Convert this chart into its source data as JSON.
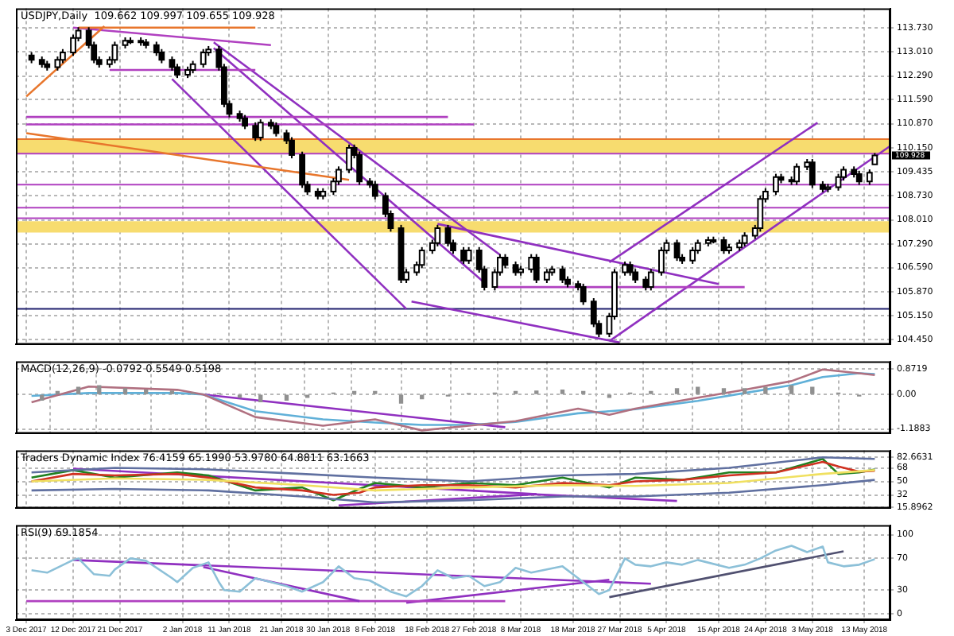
{
  "chart_data": [
    {
      "type": "candlestick",
      "title": "USDJPY,Daily  109.662 109.997 109.655 109.928",
      "x": [
        "2017-12-04",
        "2017-12-06",
        "2017-12-07",
        "2017-12-09",
        "2017-12-10",
        "2017-12-12",
        "2017-12-13",
        "2017-12-15",
        "2017-12-16",
        "2017-12-17",
        "2017-12-19",
        "2017-12-20",
        "2017-12-22",
        "2017-12-23",
        "2017-12-25",
        "2017-12-26",
        "2017-12-28",
        "2017-12-29",
        "2017-12-31",
        "2018-01-01",
        "2018-01-03",
        "2018-01-04",
        "2018-01-06",
        "2018-01-07",
        "2018-01-09",
        "2018-01-10",
        "2018-01-11",
        "2018-01-13",
        "2018-01-14",
        "2018-01-16",
        "2018-01-17",
        "2018-01-19",
        "2018-01-20",
        "2018-01-22",
        "2018-01-23",
        "2018-01-25",
        "2018-01-26",
        "2018-01-28",
        "2018-01-29",
        "2018-01-31",
        "2018-02-01",
        "2018-02-03",
        "2018-02-04",
        "2018-02-05",
        "2018-02-07",
        "2018-02-08",
        "2018-02-10",
        "2018-02-11",
        "2018-02-13",
        "2018-02-14",
        "2018-02-16",
        "2018-02-17",
        "2018-02-19",
        "2018-02-20",
        "2018-02-22",
        "2018-02-23",
        "2018-02-25",
        "2018-02-26",
        "2018-02-28",
        "2018-03-01",
        "2018-03-03",
        "2018-03-04",
        "2018-03-05",
        "2018-03-07",
        "2018-03-08",
        "2018-03-10",
        "2018-03-11",
        "2018-03-13",
        "2018-03-14",
        "2018-03-16",
        "2018-03-17",
        "2018-03-19",
        "2018-03-20",
        "2018-03-22",
        "2018-03-23",
        "2018-03-25",
        "2018-03-26",
        "2018-03-28",
        "2018-03-29",
        "2018-03-30",
        "2018-04-01",
        "2018-04-02",
        "2018-04-04",
        "2018-04-05",
        "2018-04-07",
        "2018-04-08",
        "2018-04-10",
        "2018-04-11",
        "2018-04-13",
        "2018-04-14",
        "2018-04-16",
        "2018-04-17",
        "2018-04-19",
        "2018-04-20",
        "2018-04-22",
        "2018-04-23",
        "2018-04-24",
        "2018-04-26",
        "2018-04-27",
        "2018-04-29",
        "2018-04-30",
        "2018-05-02",
        "2018-05-03",
        "2018-05-05",
        "2018-05-06",
        "2018-05-08",
        "2018-05-09",
        "2018-05-11",
        "2018-05-12",
        "2018-05-14",
        "2018-05-15"
      ],
      "ohlc": [
        [
          112.9,
          113.0,
          112.67,
          112.77
        ],
        [
          112.77,
          112.87,
          112.54,
          112.64
        ],
        [
          112.64,
          112.74,
          112.45,
          112.55
        ],
        [
          112.55,
          112.87,
          112.45,
          112.77
        ],
        [
          112.77,
          113.09,
          112.67,
          112.99
        ],
        [
          112.99,
          113.52,
          112.89,
          113.42
        ],
        [
          113.42,
          113.74,
          113.32,
          113.64
        ],
        [
          113.64,
          113.74,
          113.11,
          113.21
        ],
        [
          113.21,
          113.31,
          112.67,
          112.77
        ],
        [
          112.77,
          112.87,
          112.54,
          112.64
        ],
        [
          112.64,
          112.87,
          112.54,
          112.77
        ],
        [
          112.77,
          113.31,
          112.67,
          113.21
        ],
        [
          113.21,
          113.44,
          113.11,
          113.34
        ],
        [
          113.34,
          113.44,
          113.24,
          113.34
        ],
        [
          113.34,
          113.44,
          113.19,
          113.29
        ],
        [
          113.29,
          113.39,
          113.11,
          113.21
        ],
        [
          113.21,
          113.31,
          112.89,
          112.99
        ],
        [
          112.99,
          113.09,
          112.67,
          112.77
        ],
        [
          112.77,
          112.87,
          112.45,
          112.55
        ],
        [
          112.55,
          112.65,
          112.23,
          112.33
        ],
        [
          112.33,
          112.57,
          112.23,
          112.47
        ],
        [
          112.47,
          112.74,
          112.37,
          112.64
        ],
        [
          112.64,
          113.09,
          112.54,
          112.99
        ],
        [
          112.99,
          113.18,
          112.89,
          113.08
        ],
        [
          113.08,
          113.18,
          112.45,
          112.55
        ],
        [
          112.55,
          112.65,
          111.36,
          111.46
        ],
        [
          111.46,
          111.56,
          111.06,
          111.16
        ],
        [
          111.16,
          111.26,
          110.93,
          111.03
        ],
        [
          111.03,
          111.13,
          110.71,
          110.81
        ],
        [
          110.81,
          110.91,
          110.36,
          110.46
        ],
        [
          110.46,
          111.0,
          110.36,
          110.9
        ],
        [
          110.9,
          111.0,
          110.71,
          110.81
        ],
        [
          110.81,
          110.91,
          110.49,
          110.59
        ],
        [
          110.59,
          110.69,
          110.27,
          110.37
        ],
        [
          110.37,
          110.47,
          109.84,
          109.94
        ],
        [
          109.94,
          110.04,
          108.96,
          109.06
        ],
        [
          109.06,
          109.16,
          108.75,
          108.85
        ],
        [
          108.85,
          108.95,
          108.62,
          108.72
        ],
        [
          108.72,
          108.95,
          108.62,
          108.85
        ],
        [
          108.85,
          109.25,
          108.75,
          109.15
        ],
        [
          109.15,
          109.6,
          109.05,
          109.5
        ],
        [
          109.5,
          110.25,
          109.4,
          110.15
        ],
        [
          110.15,
          110.25,
          109.84,
          109.94
        ],
        [
          109.94,
          110.04,
          109.05,
          109.15
        ],
        [
          109.15,
          109.25,
          108.96,
          109.06
        ],
        [
          109.06,
          109.16,
          108.62,
          108.72
        ],
        [
          108.72,
          108.82,
          108.09,
          108.19
        ],
        [
          108.19,
          108.29,
          107.66,
          107.76
        ],
        [
          107.76,
          107.86,
          106.13,
          106.23
        ],
        [
          106.23,
          106.55,
          106.13,
          106.45
        ],
        [
          106.45,
          106.77,
          106.35,
          106.67
        ],
        [
          106.67,
          107.2,
          106.57,
          107.1
        ],
        [
          107.1,
          107.42,
          107.0,
          107.32
        ],
        [
          107.32,
          107.86,
          107.22,
          107.76
        ],
        [
          107.76,
          107.86,
          107.22,
          107.32
        ],
        [
          107.32,
          107.42,
          107.0,
          107.1
        ],
        [
          107.1,
          107.2,
          106.7,
          106.8
        ],
        [
          106.8,
          107.2,
          106.7,
          107.1
        ],
        [
          107.1,
          107.2,
          106.44,
          106.54
        ],
        [
          106.54,
          106.64,
          105.91,
          106.01
        ],
        [
          106.01,
          106.55,
          105.91,
          106.45
        ],
        [
          106.45,
          106.99,
          106.35,
          106.89
        ],
        [
          106.89,
          106.99,
          106.57,
          106.67
        ],
        [
          106.67,
          106.77,
          106.35,
          106.45
        ],
        [
          106.45,
          106.64,
          106.35,
          106.54
        ],
        [
          106.54,
          106.99,
          106.44,
          106.89
        ],
        [
          106.89,
          106.99,
          106.13,
          106.23
        ],
        [
          106.23,
          106.55,
          106.13,
          106.45
        ],
        [
          106.45,
          106.64,
          106.35,
          106.54
        ],
        [
          106.54,
          106.64,
          106.13,
          106.23
        ],
        [
          106.23,
          106.33,
          106.0,
          106.1
        ],
        [
          106.1,
          106.2,
          105.91,
          106.01
        ],
        [
          106.01,
          106.11,
          105.48,
          105.58
        ],
        [
          105.58,
          105.68,
          104.82,
          104.92
        ],
        [
          104.92,
          105.02,
          104.52,
          104.62
        ],
        [
          104.62,
          105.24,
          104.52,
          105.14
        ],
        [
          105.14,
          106.55,
          105.04,
          106.45
        ],
        [
          106.45,
          106.77,
          106.35,
          106.67
        ],
        [
          106.67,
          106.77,
          106.35,
          106.45
        ],
        [
          106.45,
          106.55,
          106.13,
          106.23
        ],
        [
          106.23,
          106.33,
          105.91,
          106.01
        ],
        [
          106.01,
          106.55,
          105.91,
          106.45
        ],
        [
          106.45,
          107.2,
          106.35,
          107.1
        ],
        [
          107.1,
          107.42,
          107.0,
          107.32
        ],
        [
          107.32,
          107.42,
          106.79,
          106.89
        ],
        [
          106.89,
          106.99,
          106.7,
          106.8
        ],
        [
          106.8,
          107.2,
          106.7,
          107.1
        ],
        [
          107.1,
          107.42,
          107.0,
          107.32
        ],
        [
          107.32,
          107.51,
          107.22,
          107.41
        ],
        [
          107.41,
          107.51,
          107.31,
          107.41
        ],
        [
          107.41,
          107.51,
          107.0,
          107.1
        ],
        [
          107.1,
          107.29,
          107.0,
          107.19
        ],
        [
          107.19,
          107.42,
          107.09,
          107.32
        ],
        [
          107.32,
          107.64,
          107.22,
          107.54
        ],
        [
          107.54,
          107.86,
          107.44,
          107.76
        ],
        [
          107.76,
          108.73,
          107.66,
          108.63
        ],
        [
          108.63,
          108.95,
          108.53,
          108.85
        ],
        [
          108.85,
          109.38,
          108.75,
          109.28
        ],
        [
          109.28,
          109.38,
          109.1,
          109.2
        ],
        [
          109.2,
          109.3,
          109.05,
          109.15
        ],
        [
          109.15,
          109.69,
          109.05,
          109.59
        ],
        [
          109.59,
          109.82,
          109.49,
          109.72
        ],
        [
          109.72,
          109.82,
          108.96,
          109.06
        ],
        [
          109.06,
          109.16,
          108.83,
          108.93
        ],
        [
          108.93,
          109.08,
          108.83,
          108.98
        ],
        [
          108.98,
          109.38,
          108.88,
          109.28
        ],
        [
          109.28,
          109.6,
          109.18,
          109.5
        ],
        [
          109.5,
          109.6,
          109.27,
          109.37
        ],
        [
          109.37,
          109.47,
          109.05,
          109.15
        ],
        [
          109.15,
          109.51,
          109.05,
          109.41
        ],
        [
          109.662,
          109.997,
          109.655,
          109.928
        ]
      ],
      "xlim": [
        "2017-12-01",
        "2018-05-18"
      ],
      "xticks": [
        {
          "value": "2017-12-03",
          "label": null
        },
        {
          "value": "2017-12-12",
          "label": null
        },
        {
          "value": "2017-12-21",
          "label": null
        },
        {
          "value": "2018-01-02",
          "label": null
        },
        {
          "value": "2018-01-11",
          "label": null
        },
        {
          "value": "2018-01-21",
          "label": null
        },
        {
          "value": "2018-01-30",
          "label": null
        },
        {
          "value": "2018-02-08",
          "label": null
        },
        {
          "value": "2018-02-18",
          "label": null
        },
        {
          "value": "2018-02-27",
          "label": null
        },
        {
          "value": "2018-03-08",
          "label": null
        },
        {
          "value": "2018-03-18",
          "label": null
        },
        {
          "value": "2018-03-27",
          "label": null
        },
        {
          "value": "2018-04-05",
          "label": null
        },
        {
          "value": "2018-04-15",
          "label": null
        },
        {
          "value": "2018-04-24",
          "label": null
        },
        {
          "value": "2018-05-03",
          "label": null
        },
        {
          "value": "2018-05-13",
          "label": null
        }
      ],
      "ylim": [
        104.3,
        114.3
      ],
      "yticks": [
        {
          "value": 113.73,
          "label": "113.730"
        },
        {
          "value": 113.01,
          "label": "113.010"
        },
        {
          "value": 112.29,
          "label": "112.290"
        },
        {
          "value": 111.59,
          "label": "111.590"
        },
        {
          "value": 110.87,
          "label": "110.870"
        },
        {
          "value": 110.15,
          "label": "110.150"
        },
        109.435,
        {
          "value": 108.73,
          "label": "108.730"
        },
        {
          "value": 108.01,
          "label": "108.010"
        },
        {
          "value": 107.29,
          "label": "107.290"
        },
        {
          "value": 106.59,
          "label": "106.590"
        },
        {
          "value": 105.87,
          "label": "105.870"
        },
        {
          "value": 105.15,
          "label": "105.150"
        },
        {
          "value": 104.45,
          "label": "104.450"
        }
      ],
      "tick_labels": "y",
      "grid": true,
      "bands": [
        {
          "axis": "y",
          "from": 109.98,
          "to": 110.41,
          "color": "#f7dc6f"
        },
        {
          "axis": "y",
          "from": 107.63,
          "to": 107.97,
          "color": "#f7dc6f"
        }
      ],
      "ref_lines": [
        {
          "axis": "y",
          "value": 110.41,
          "color": "#e8762c"
        },
        {
          "axis": "y",
          "value": 109.98,
          "color": "#b040c0"
        },
        {
          "axis": "y",
          "value": 109.06,
          "color": "#b040c0"
        },
        {
          "axis": "y",
          "value": 108.37,
          "color": "#b040c0"
        },
        {
          "axis": "y",
          "value": 108.06,
          "color": "#b040c0"
        },
        {
          "axis": "y",
          "value": 105.36,
          "color": "#20206e"
        }
      ],
      "series": [
        {
          "type": "line",
          "color": "#e8762c",
          "x": [
            "2017-12-03",
            "2018-02-03"
          ],
          "values": [
            110.59,
            109.2
          ]
        },
        {
          "type": "line",
          "color": "#e8762c",
          "x": [
            "2017-12-03",
            "2017-12-18"
          ],
          "values": [
            111.68,
            113.77
          ]
        },
        {
          "type": "line",
          "color": "#e8762c",
          "x": [
            "2017-12-13",
            "2018-01-16"
          ],
          "values": [
            113.73,
            113.73
          ]
        },
        {
          "type": "line",
          "color": "#b040c0",
          "x": [
            "2017-12-12",
            "2018-01-19"
          ],
          "values": [
            113.73,
            113.21
          ]
        },
        {
          "type": "line",
          "color": "#b040c0",
          "x": [
            "2017-12-19",
            "2018-01-16"
          ],
          "values": [
            112.47,
            112.47
          ]
        },
        {
          "type": "line",
          "color": "#b040c0",
          "x": [
            "2017-12-03",
            "2018-02-22"
          ],
          "values": [
            111.07,
            111.07
          ]
        },
        {
          "type": "line",
          "color": "#b040c0",
          "x": [
            "2017-12-03",
            "2018-02-27"
          ],
          "values": [
            110.85,
            110.85
          ]
        },
        {
          "type": "line",
          "color": "#9030c0",
          "x": [
            "2018-01-08",
            "2018-03-04"
          ],
          "values": [
            113.29,
            106.97
          ]
        },
        {
          "type": "line",
          "color": "#9030c0",
          "x": [
            "2018-01-08",
            "2018-03-01"
          ],
          "values": [
            113.12,
            106.14
          ]
        },
        {
          "type": "line",
          "color": "#9030c0",
          "x": [
            "2017-12-31",
            "2018-02-14"
          ],
          "values": [
            112.2,
            105.36
          ]
        },
        {
          "type": "line",
          "color": "#9030c0",
          "x": [
            "2018-02-15",
            "2018-03-27"
          ],
          "values": [
            105.58,
            104.36
          ]
        },
        {
          "type": "line",
          "color": "#9030c0",
          "x": [
            "2018-02-20",
            "2018-04-15"
          ],
          "values": [
            107.89,
            106.1
          ]
        },
        {
          "type": "line",
          "color": "#b040c0",
          "x": [
            "2018-03-03",
            "2018-04-20"
          ],
          "values": [
            106.01,
            106.01
          ]
        },
        {
          "type": "line",
          "color": "#9030c0",
          "x": [
            "2018-03-25",
            "2018-05-18"
          ],
          "values": [
            104.4,
            110.21
          ]
        },
        {
          "type": "line",
          "color": "#9030c0",
          "x": [
            "2018-03-25",
            "2018-05-04"
          ],
          "values": [
            106.75,
            110.9
          ]
        }
      ],
      "annotations": [
        "109.928"
      ]
    },
    {
      "type": "bar",
      "title": "MACD(12,26,9) -0.0792 0.5549 0.5198",
      "xlim": [
        "2017-12-01",
        "2018-05-18"
      ],
      "xticks": [
        {
          "value": "2017-12-03",
          "label": null
        },
        {
          "value": "2017-12-12",
          "label": null
        },
        {
          "value": "2017-12-21",
          "label": null
        },
        {
          "value": "2018-01-02",
          "label": null
        },
        {
          "value": "2018-01-11",
          "label": null
        },
        {
          "value": "2018-01-21",
          "label": null
        },
        {
          "value": "2018-01-30",
          "label": null
        },
        {
          "value": "2018-02-08",
          "label": null
        },
        {
          "value": "2018-02-18",
          "label": null
        },
        {
          "value": "2018-02-27",
          "label": null
        },
        {
          "value": "2018-03-08",
          "label": null
        },
        {
          "value": "2018-03-18",
          "label": null
        },
        {
          "value": "2018-03-27",
          "label": null
        },
        {
          "value": "2018-04-05",
          "label": null
        },
        {
          "value": "2018-04-15",
          "label": null
        },
        {
          "value": "2018-04-24",
          "label": null
        },
        {
          "value": "2018-05-03",
          "label": null
        },
        {
          "value": "2018-05-13",
          "label": null
        }
      ],
      "ylim": [
        -1.35,
        1.14
      ],
      "yticks": [
        0.8719,
        {
          "value": 0,
          "label": "0.00"
        },
        -1.1883
      ],
      "tick_labels": "y",
      "grid": true,
      "series": [
        {
          "type": "bar",
          "color": "#909090",
          "x": [
            "2017-12-06",
            "2017-12-09",
            "2017-12-13",
            "2017-12-17",
            "2017-12-22",
            "2017-12-26",
            "2017-12-31",
            "2018-01-04",
            "2018-01-09",
            "2018-01-13",
            "2018-01-17",
            "2018-01-22",
            "2018-01-26",
            "2018-01-31",
            "2018-02-04",
            "2018-02-08",
            "2018-02-13",
            "2018-02-17",
            "2018-02-22",
            "2018-02-26",
            "2018-03-03",
            "2018-03-07",
            "2018-03-11",
            "2018-03-16",
            "2018-03-20",
            "2018-03-25",
            "2018-03-29",
            "2018-04-02",
            "2018-04-07",
            "2018-04-11",
            "2018-04-16",
            "2018-04-20",
            "2018-04-24",
            "2018-04-29",
            "2018-05-03",
            "2018-05-08",
            "2018-05-12"
          ],
          "values": [
            -0.2,
            0.1,
            0.25,
            0.3,
            0.2,
            0.15,
            0.12,
            0.05,
            0.02,
            -0.1,
            -0.25,
            -0.2,
            -0.1,
            0.05,
            0.1,
            0.1,
            -0.3,
            -0.15,
            -0.05,
            0.02,
            0.05,
            0.1,
            0.12,
            0.15,
            0.1,
            -0.1,
            0.05,
            0.1,
            0.2,
            0.25,
            0.2,
            0.2,
            0.25,
            0.3,
            0.25,
            0.05,
            -0.05
          ]
        },
        {
          "type": "line",
          "color": "#b07080",
          "x": [
            "2017-12-04",
            "2017-12-15",
            "2018-01-01",
            "2018-01-06",
            "2018-01-16",
            "2018-01-29",
            "2018-02-08",
            "2018-02-17",
            "2018-02-26",
            "2018-03-07",
            "2018-03-19",
            "2018-03-25",
            "2018-03-30",
            "2018-04-11",
            "2018-04-20",
            "2018-04-29",
            "2018-05-05",
            "2018-05-12",
            "2018-05-15"
          ],
          "values": [
            -0.27,
            0.27,
            0.16,
            0,
            -0.78,
            -1.08,
            -0.86,
            -1.24,
            -1.08,
            -0.92,
            -0.49,
            -0.7,
            -0.49,
            -0.11,
            0.16,
            0.46,
            0.86,
            0.73,
            0.67
          ]
        },
        {
          "type": "line",
          "color": "#60b0d8",
          "x": [
            "2017-12-04",
            "2017-12-15",
            "2018-01-01",
            "2018-01-06",
            "2018-01-16",
            "2018-01-29",
            "2018-02-08",
            "2018-02-17",
            "2018-02-26",
            "2018-03-07",
            "2018-03-19",
            "2018-03-25",
            "2018-03-30",
            "2018-04-11",
            "2018-04-20",
            "2018-04-29",
            "2018-05-05",
            "2018-05-12",
            "2018-05-15"
          ],
          "values": [
            -0.05,
            0.05,
            0.05,
            0,
            -0.58,
            -0.86,
            -0.97,
            -1.05,
            -1.05,
            -0.95,
            -0.65,
            -0.58,
            -0.51,
            -0.22,
            0.05,
            0.32,
            0.6,
            0.73,
            0.7
          ]
        },
        {
          "type": "line",
          "color": "#9030c0",
          "x": [
            "2018-01-06",
            "2018-03-05"
          ],
          "values": [
            0,
            -1.13
          ]
        }
      ]
    },
    {
      "type": "line",
      "title": "Traders Dynamic Index 76.4159 65.1990 53.9780 64.8811 63.1663",
      "xlim": [
        "2017-12-01",
        "2018-05-18"
      ],
      "xticks": [
        {
          "value": "2017-12-03",
          "label": null
        },
        {
          "value": "2017-12-12",
          "label": null
        },
        {
          "value": "2017-12-21",
          "label": null
        },
        {
          "value": "2018-01-02",
          "label": null
        },
        {
          "value": "2018-01-11",
          "label": null
        },
        {
          "value": "2018-01-21",
          "label": null
        },
        {
          "value": "2018-01-30",
          "label": null
        },
        {
          "value": "2018-02-08",
          "label": null
        },
        {
          "value": "2018-02-18",
          "label": null
        },
        {
          "value": "2018-02-27",
          "label": null
        },
        {
          "value": "2018-03-08",
          "label": null
        },
        {
          "value": "2018-03-18",
          "label": null
        },
        {
          "value": "2018-03-27",
          "label": null
        },
        {
          "value": "2018-04-05",
          "label": null
        },
        {
          "value": "2018-04-15",
          "label": null
        },
        {
          "value": "2018-04-24",
          "label": null
        },
        {
          "value": "2018-05-03",
          "label": null
        },
        {
          "value": "2018-05-13",
          "label": null
        }
      ],
      "ylim": [
        14.2,
        91.2
      ],
      "yticks": [
        82.6631,
        68,
        50,
        32,
        15.8962
      ],
      "tick_labels": "y",
      "grid": true,
      "series": [
        {
          "color": "#6070a0",
          "x": [
            "2017-12-04",
            "2017-12-20",
            "2018-01-07",
            "2018-01-25",
            "2018-02-08",
            "2018-02-26",
            "2018-03-16",
            "2018-03-30",
            "2018-04-17",
            "2018-05-05",
            "2018-05-15"
          ],
          "values": [
            62,
            68,
            66,
            60,
            55,
            50,
            58,
            60,
            68,
            82,
            80
          ]
        },
        {
          "color": "#6070a0",
          "x": [
            "2017-12-04",
            "2017-12-20",
            "2018-01-07",
            "2018-01-25",
            "2018-02-08",
            "2018-02-26",
            "2018-03-16",
            "2018-03-30",
            "2018-04-17",
            "2018-05-05",
            "2018-05-15"
          ],
          "values": [
            38,
            40,
            38,
            30,
            22,
            25,
            30,
            30,
            35,
            45,
            52
          ]
        },
        {
          "color": "#f0e060",
          "x": [
            "2017-12-04",
            "2017-12-20",
            "2018-01-07",
            "2018-01-25",
            "2018-02-08",
            "2018-02-26",
            "2018-03-16",
            "2018-03-30",
            "2018-04-17",
            "2018-05-05",
            "2018-05-15"
          ],
          "values": [
            50,
            54,
            52,
            45,
            38,
            42,
            45,
            44,
            48,
            60,
            65
          ]
        },
        {
          "color": "#d03020",
          "x": [
            "2017-12-04",
            "2017-12-12",
            "2017-12-20",
            "2018-01-01",
            "2018-01-07",
            "2018-01-16",
            "2018-01-25",
            "2018-01-31",
            "2018-02-05",
            "2018-02-08",
            "2018-02-17",
            "2018-02-26",
            "2018-03-07",
            "2018-03-16",
            "2018-03-25",
            "2018-03-30",
            "2018-04-08",
            "2018-04-17",
            "2018-04-26",
            "2018-05-05",
            "2018-05-08",
            "2018-05-12",
            "2018-05-15"
          ],
          "values": [
            50,
            60,
            58,
            60,
            55,
            42,
            38,
            32,
            35,
            42,
            45,
            45,
            42,
            48,
            45,
            50,
            52,
            58,
            62,
            76,
            70,
            63,
            64
          ]
        },
        {
          "color": "#208020",
          "x": [
            "2017-12-04",
            "2017-12-12",
            "2017-12-20",
            "2018-01-01",
            "2018-01-07",
            "2018-01-16",
            "2018-01-25",
            "2018-01-31",
            "2018-02-05",
            "2018-02-08",
            "2018-02-17",
            "2018-02-26",
            "2018-03-07",
            "2018-03-16",
            "2018-03-25",
            "2018-03-30",
            "2018-04-08",
            "2018-04-17",
            "2018-04-26",
            "2018-05-05",
            "2018-05-08",
            "2018-05-12",
            "2018-05-15"
          ],
          "values": [
            55,
            65,
            55,
            62,
            58,
            38,
            42,
            25,
            40,
            48,
            42,
            48,
            45,
            55,
            42,
            55,
            52,
            62,
            62,
            80,
            60,
            62,
            66
          ]
        },
        {
          "color": "#9030c0",
          "x": [
            "2017-12-12",
            "2018-03-11"
          ],
          "values": [
            67,
            33
          ]
        },
        {
          "color": "#9030c0",
          "x": [
            "2018-02-01",
            "2018-03-11"
          ],
          "values": [
            18,
            33
          ]
        },
        {
          "color": "#9030c0",
          "x": [
            "2018-03-10",
            "2018-04-07"
          ],
          "values": [
            33,
            24
          ]
        }
      ]
    },
    {
      "type": "line",
      "title": "RSI(9) 69.1854",
      "xlim": [
        "2017-12-01",
        "2018-05-18"
      ],
      "xticks": [
        {
          "value": "2017-12-03",
          "label": "3 Dec 2017"
        },
        {
          "value": "2017-12-12",
          "label": "12 Dec 2017"
        },
        {
          "value": "2017-12-21",
          "label": "21 Dec 2017"
        },
        {
          "value": "2018-01-02",
          "label": "2 Jan 2018"
        },
        {
          "value": "2018-01-11",
          "label": "11 Jan 2018"
        },
        {
          "value": "2018-01-21",
          "label": "21 Jan 2018"
        },
        {
          "value": "2018-01-30",
          "label": "30 Jan 2018"
        },
        {
          "value": "2018-02-08",
          "label": "8 Feb 2018"
        },
        {
          "value": "2018-02-18",
          "label": "18 Feb 2018"
        },
        {
          "value": "2018-02-27",
          "label": "27 Feb 2018"
        },
        {
          "value": "2018-03-08",
          "label": "8 Mar 2018"
        },
        {
          "value": "2018-03-18",
          "label": "18 Mar 2018"
        },
        {
          "value": "2018-03-27",
          "label": "27 Mar 2018"
        },
        {
          "value": "2018-04-05",
          "label": "5 Apr 2018"
        },
        {
          "value": "2018-04-15",
          "label": "15 Apr 2018"
        },
        {
          "value": "2018-04-24",
          "label": "24 Apr 2018"
        },
        {
          "value": "2018-05-03",
          "label": "3 May 2018"
        },
        {
          "value": "2018-05-13",
          "label": "13 May 2018"
        }
      ],
      "ylim": [
        -8,
        112
      ],
      "yticks": [
        100,
        70,
        30,
        0
      ],
      "grid": true,
      "series": [
        {
          "color": "#8cc0d8",
          "x": [
            "2017-12-04",
            "2017-12-07",
            "2017-12-12",
            "2017-12-13",
            "2017-12-16",
            "2017-12-19",
            "2017-12-20",
            "2017-12-23",
            "2017-12-26",
            "2017-12-31",
            "2018-01-01",
            "2018-01-04",
            "2018-01-07",
            "2018-01-09",
            "2018-01-10",
            "2018-01-13",
            "2018-01-16",
            "2018-01-19",
            "2018-01-22",
            "2018-01-25",
            "2018-01-29",
            "2018-02-01",
            "2018-02-04",
            "2018-02-07",
            "2018-02-11",
            "2018-02-14",
            "2018-02-17",
            "2018-02-20",
            "2018-02-23",
            "2018-02-26",
            "2018-03-01",
            "2018-03-04",
            "2018-03-07",
            "2018-03-10",
            "2018-03-16",
            "2018-03-19",
            "2018-03-22",
            "2018-03-23",
            "2018-03-25",
            "2018-03-28",
            "2018-03-30",
            "2018-04-02",
            "2018-04-05",
            "2018-04-08",
            "2018-04-11",
            "2018-04-17",
            "2018-04-20",
            "2018-04-23",
            "2018-04-26",
            "2018-04-29",
            "2018-05-02",
            "2018-05-05",
            "2018-05-06",
            "2018-05-09",
            "2018-05-12",
            "2018-05-15"
          ],
          "values": [
            55,
            52,
            68,
            70,
            50,
            48,
            56,
            70,
            67,
            45,
            40,
            58,
            65,
            40,
            30,
            28,
            45,
            40,
            35,
            28,
            40,
            60,
            45,
            42,
            28,
            22,
            35,
            55,
            45,
            48,
            35,
            40,
            58,
            52,
            60,
            45,
            30,
            25,
            30,
            70,
            62,
            60,
            65,
            62,
            68,
            58,
            62,
            70,
            80,
            86,
            78,
            85,
            65,
            60,
            62,
            69
          ]
        },
        {
          "color": "#9030c0",
          "x": [
            "2017-12-12",
            "2018-04-02"
          ],
          "values": [
            68,
            38
          ]
        },
        {
          "color": "#9030c0",
          "x": [
            "2018-01-06",
            "2018-02-05"
          ],
          "values": [
            59,
            16
          ]
        },
        {
          "color": "#b040c0",
          "x": [
            "2017-12-03",
            "2018-03-05"
          ],
          "values": [
            16,
            16
          ]
        },
        {
          "color": "#9030c0",
          "x": [
            "2018-02-14",
            "2018-03-25"
          ],
          "values": [
            14,
            43
          ]
        },
        {
          "color": "#505070",
          "x": [
            "2018-03-25",
            "2018-05-09"
          ],
          "values": [
            21,
            79
          ]
        }
      ]
    }
  ]
}
